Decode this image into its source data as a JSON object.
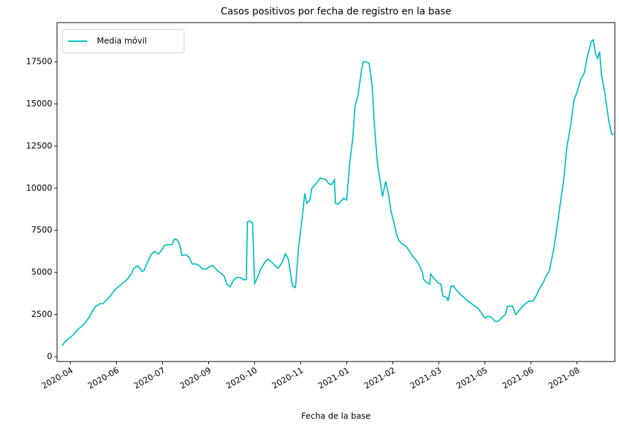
{
  "chart_data": {
    "type": "line",
    "title": "Casos positivos por fecha de registro en la base",
    "x_label": "Fecha de la base",
    "legend": "upper left",
    "series": [
      {
        "name": "Media móvil",
        "color": "#00bfbf",
        "x": [
          18359,
          18362,
          18365,
          18369,
          18372,
          18375,
          18379,
          18382,
          18386,
          18389,
          18392,
          18396,
          18399,
          18402,
          18406,
          18409,
          18412,
          18416,
          18419,
          18422,
          18426,
          18429,
          18433,
          18435,
          18437,
          18439,
          18443,
          18446,
          18449,
          18453,
          18456,
          18459,
          18463,
          18466,
          18469,
          18472,
          18474,
          18476,
          18480,
          18483,
          18486,
          18490,
          18493,
          18496,
          18500,
          18503,
          18506,
          18510,
          18513,
          18517,
          18520,
          18523,
          18527,
          18530,
          18533,
          18537,
          18539,
          18540,
          18542,
          18545,
          18547,
          18550,
          18553,
          18557,
          18560,
          18564,
          18567,
          18570,
          18574,
          18577,
          18580,
          18584,
          18587,
          18590,
          18594,
          18596,
          18598,
          18601,
          18603,
          18606,
          18609,
          18611,
          18614,
          18617,
          18619,
          18622,
          18625,
          18626,
          18629,
          18631,
          18634,
          18637,
          18640,
          18643,
          18645,
          18648,
          18651,
          18653,
          18656,
          18659,
          18662,
          18664,
          18667,
          18670,
          18672,
          18675,
          18678,
          18680,
          18683,
          18686,
          18688,
          18691,
          18695,
          18698,
          18701,
          18705,
          18708,
          18711,
          18712,
          18715,
          18718,
          18719,
          18723,
          18726,
          18729,
          18731,
          18735,
          18736,
          18739,
          18741,
          18745,
          18748,
          18752,
          18755,
          18758,
          18762,
          18765,
          18768,
          18772,
          18775,
          18778,
          18782,
          18785,
          18788,
          18792,
          18794,
          18799,
          18802,
          18805,
          18809,
          18812,
          18815,
          18819,
          18822,
          18825,
          18829,
          18832,
          18835,
          18839,
          18842,
          18846,
          18849,
          18852,
          18856,
          18859,
          18862,
          18866,
          18869,
          18872,
          18876,
          18878,
          18880,
          18882,
          18884,
          18886,
          18889,
          18893,
          18896,
          18898
        ],
        "values": [
          650,
          900,
          1050,
          1250,
          1450,
          1650,
          1850,
          2050,
          2400,
          2750,
          3000,
          3150,
          3150,
          3350,
          3600,
          3850,
          4050,
          4250,
          4400,
          4550,
          4850,
          5250,
          5400,
          5250,
          5050,
          5100,
          5700,
          6050,
          6250,
          6100,
          6300,
          6600,
          6650,
          6650,
          7000,
          6900,
          6600,
          6000,
          6050,
          5900,
          5500,
          5500,
          5400,
          5200,
          5200,
          5350,
          5400,
          5150,
          5000,
          4800,
          4300,
          4150,
          4600,
          4700,
          4700,
          4550,
          4600,
          8000,
          8050,
          7950,
          4350,
          4700,
          5200,
          5600,
          5800,
          5600,
          5400,
          5250,
          5600,
          6100,
          5800,
          4200,
          4100,
          6500,
          8500,
          9700,
          9100,
          9300,
          10000,
          10200,
          10400,
          10600,
          10550,
          10500,
          10300,
          10200,
          10500,
          9100,
          9050,
          9200,
          9400,
          9300,
          11500,
          13000,
          14800,
          15500,
          16800,
          17500,
          17500,
          17400,
          16000,
          13800,
          11500,
          10300,
          9500,
          10400,
          9600,
          8700,
          8000,
          7200,
          6900,
          6700,
          6550,
          6300,
          6000,
          5700,
          5400,
          5000,
          4600,
          4400,
          4300,
          4900,
          4600,
          4400,
          4300,
          3600,
          3500,
          3300,
          4200,
          4200,
          3900,
          3700,
          3500,
          3300,
          3200,
          3000,
          2900,
          2650,
          2300,
          2400,
          2350,
          2100,
          2100,
          2300,
          2500,
          3000,
          3000,
          2500,
          2700,
          3000,
          3150,
          3300,
          3300,
          3600,
          4000,
          4400,
          4800,
          5100,
          6300,
          7500,
          9200,
          10500,
          12400,
          13800,
          15200,
          15700,
          16500,
          16800,
          17800,
          18700,
          18800,
          18000,
          17700,
          18100,
          16700,
          15700,
          14000,
          13200,
          13200
        ]
      }
    ],
    "xlim": [
      18354,
      18899
    ],
    "xticks": [
      {
        "value": 18367,
        "label": "2020-04"
      },
      {
        "value": 18412,
        "label": "2020-06"
      },
      {
        "value": 18457,
        "label": "2020-07"
      },
      {
        "value": 18502,
        "label": "2020-09"
      },
      {
        "value": 18547,
        "label": "2020-10"
      },
      {
        "value": 18592,
        "label": "2020-11"
      },
      {
        "value": 18637,
        "label": "2021-01"
      },
      {
        "value": 18682,
        "label": "2021-02"
      },
      {
        "value": 18727,
        "label": "2021-03"
      },
      {
        "value": 18772,
        "label": "2021-05"
      },
      {
        "value": 18817,
        "label": "2021-06"
      },
      {
        "value": 18862,
        "label": "2021-08"
      }
    ],
    "ylim": [
      -285,
      19820
    ],
    "yticks": [
      0,
      2500,
      5000,
      7500,
      10000,
      12500,
      15000,
      17500
    ]
  }
}
